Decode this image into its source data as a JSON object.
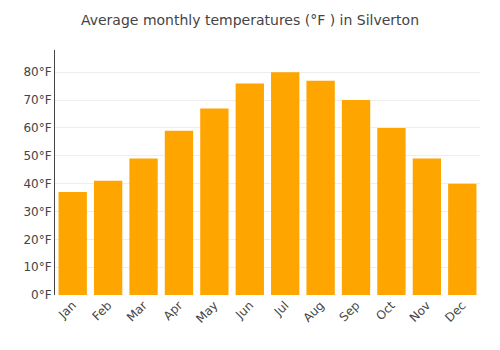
{
  "chart_data": {
    "type": "bar",
    "title": "Average monthly temperatures (°F ) in Silverton",
    "categories": [
      "Jan",
      "Feb",
      "Mar",
      "Apr",
      "May",
      "Jun",
      "Jul",
      "Aug",
      "Sep",
      "Oct",
      "Nov",
      "Dec"
    ],
    "values": [
      37,
      41,
      49,
      59,
      67,
      76,
      80,
      77,
      70,
      60,
      49,
      40
    ],
    "color": "#FFA500",
    "ylim": [
      0,
      88
    ],
    "yticks": [
      {
        "value": 0,
        "label": "0°F"
      },
      {
        "value": 10,
        "label": "10°F"
      },
      {
        "value": 20,
        "label": "20°F"
      },
      {
        "value": 30,
        "label": "30°F"
      },
      {
        "value": 40,
        "label": "40°F"
      },
      {
        "value": 50,
        "label": "50°F"
      },
      {
        "value": 60,
        "label": "60°F"
      },
      {
        "value": 70,
        "label": "70°F"
      },
      {
        "value": 80,
        "label": "80°F"
      }
    ],
    "grid": true
  }
}
